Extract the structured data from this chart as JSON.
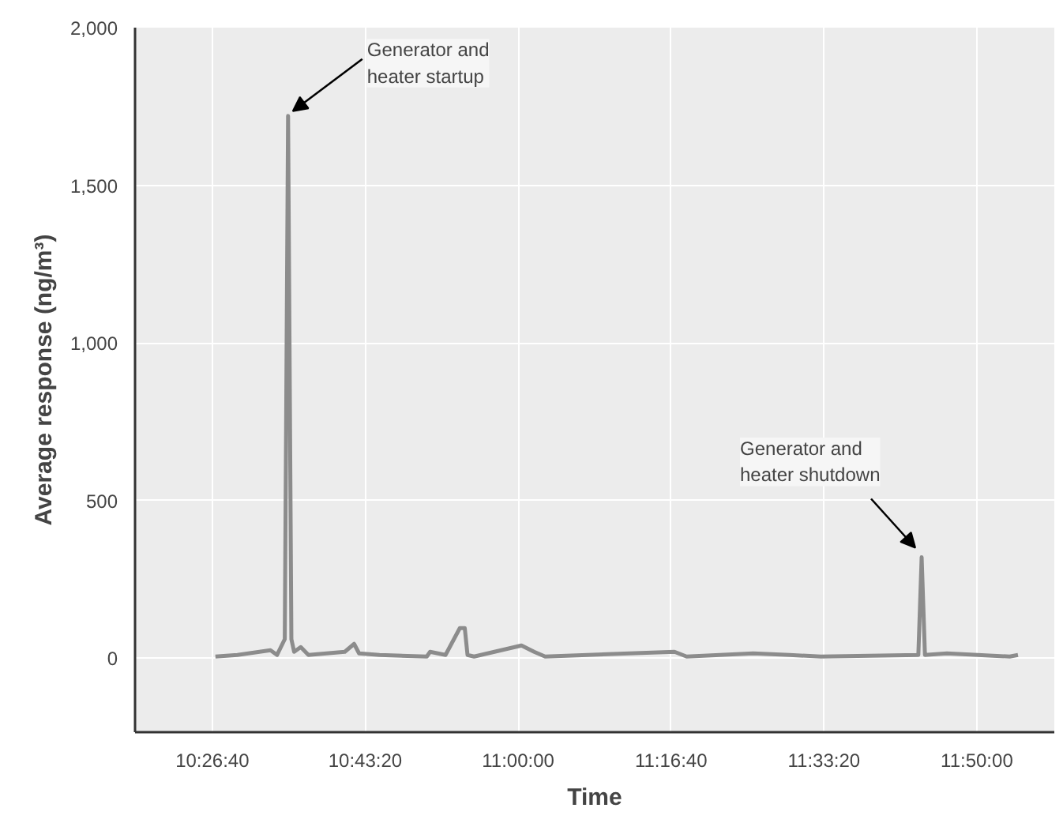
{
  "chart_data": {
    "type": "line",
    "xlabel": "Time",
    "ylabel": "Average response (ng/m³)",
    "x": [
      10.45,
      10.49,
      10.55,
      10.562,
      10.576,
      10.582,
      10.588,
      10.593,
      10.605,
      10.619,
      10.685,
      10.702,
      10.711,
      10.748,
      10.834,
      10.84,
      10.868,
      10.894,
      10.903,
      10.908,
      10.92,
      11.006,
      11.029,
      11.049,
      11.284,
      11.306,
      11.427,
      11.493,
      11.55,
      11.727,
      11.733,
      11.739,
      11.779,
      11.893,
      11.908
    ],
    "series": [
      {
        "color": "#8c8c8c",
        "values": [
          5,
          10,
          25,
          10,
          60,
          1720,
          60,
          20,
          35,
          10,
          20,
          45,
          15,
          10,
          5,
          20,
          10,
          95,
          95,
          10,
          5,
          40,
          20,
          5,
          20,
          5,
          15,
          10,
          5,
          10,
          320,
          10,
          15,
          5,
          10
        ]
      }
    ],
    "xlim": [
      10.304,
      11.974
    ],
    "xticks": [
      {
        "value": 10.4444,
        "label": "10:26:40"
      },
      {
        "value": 10.7222,
        "label": "10:43:20"
      },
      {
        "value": 11.0,
        "label": "11:00:00"
      },
      {
        "value": 11.2778,
        "label": "11:16:40"
      },
      {
        "value": 11.5556,
        "label": "11:33:20"
      },
      {
        "value": 11.8333,
        "label": "11:50:00"
      }
    ],
    "ylim": [
      -235,
      2000
    ],
    "yticks": [
      0,
      500,
      {
        "value": 1000,
        "label": "1,000"
      },
      {
        "value": 1500,
        "label": "1,500"
      },
      {
        "value": 2000,
        "label": "2,000"
      }
    ],
    "grid": true,
    "line_style": "solid",
    "marker": "none",
    "annotations": [
      {
        "text": "Generator and\nheater startup",
        "x": 10.582,
        "y": 1720
      },
      {
        "text": "Generator and\nheater shutdown",
        "x": 11.733,
        "y": 320
      }
    ]
  }
}
